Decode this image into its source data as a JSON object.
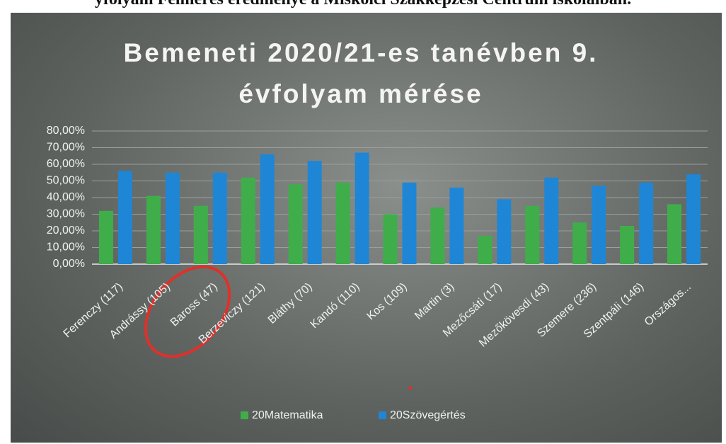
{
  "caption": "yfolyam Felmérés eredménye a Miskolci Szakképzési Centrum iskoláiban.",
  "chart_data": {
    "type": "bar",
    "title": "Bemeneti 2020/21-es tanévben 9. évfolyam mérése",
    "categories": [
      "Ferenczy (117)",
      "Andrássy (105)",
      "Baross (47)",
      "Berzeviczy (121)",
      "Bláthy (70)",
      "Kandó (110)",
      "Kos (109)",
      "Martin (3)",
      "Mezőcsáti (17)",
      "Mezőkövesdi (43)",
      "Szemere (236)",
      "Szentpáli (146)",
      "Országos..."
    ],
    "series": [
      {
        "name": "20Matematika",
        "color": "#3fae4a",
        "values": [
          32,
          41,
          35,
          52,
          48,
          49,
          30,
          34,
          17,
          35,
          25,
          23,
          36
        ]
      },
      {
        "name": "20Szövegértés",
        "color": "#1f86d6",
        "values": [
          56,
          55,
          55,
          66,
          62,
          67,
          49,
          46,
          39,
          52,
          47,
          49,
          54
        ]
      }
    ],
    "ylim": [
      0,
      80
    ],
    "yticks": [
      {
        "value": 0,
        "label": "0,00%"
      },
      {
        "value": 10,
        "label": "10,00%"
      },
      {
        "value": 20,
        "label": "20,00%"
      },
      {
        "value": 30,
        "label": "30,00%"
      },
      {
        "value": 40,
        "label": "40,00%"
      },
      {
        "value": 50,
        "label": "50,00%"
      },
      {
        "value": 60,
        "label": "60,00%"
      },
      {
        "value": 70,
        "label": "70,00%"
      },
      {
        "value": 80,
        "label": "80,00%"
      }
    ],
    "grid": true,
    "legend": "bottom"
  }
}
